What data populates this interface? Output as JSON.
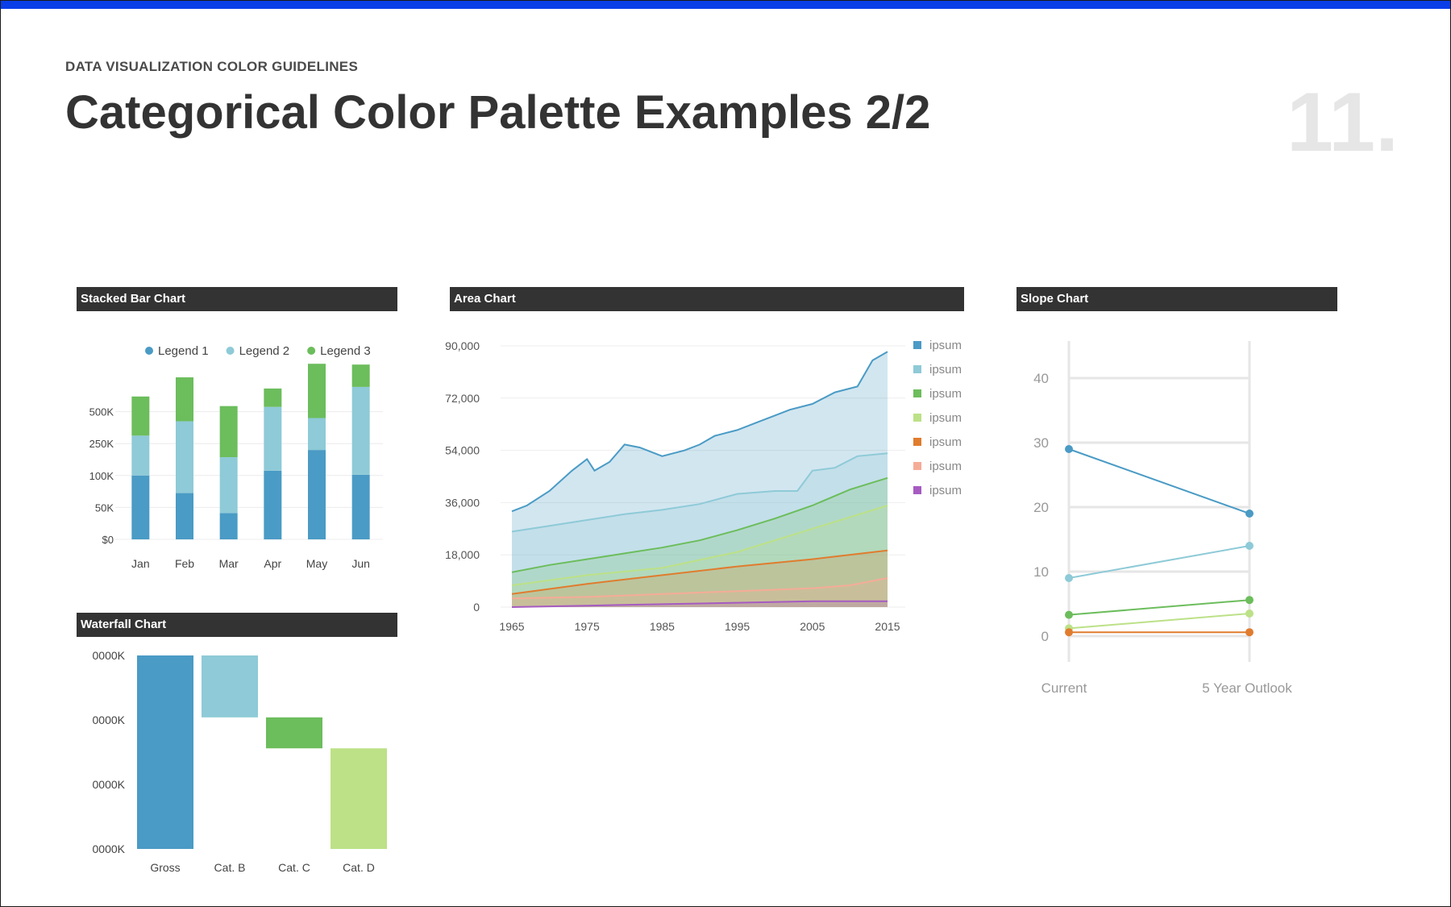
{
  "page": {
    "eyebrow": "DATA VISUALIZATION COLOR GUIDELINES",
    "title": "Categorical Color Palette Examples 2/2",
    "number": "11."
  },
  "colors": {
    "top_bar": "#0a3fe8",
    "header_bg": "#333333",
    "palette": [
      "#4a9bc5",
      "#8ecad7",
      "#6cbd5c",
      "#bce187",
      "#e07c2e",
      "#f5ac97",
      "#a65bc1"
    ]
  },
  "panels": {
    "stacked": "Stacked Bar Chart",
    "waterfall": "Waterfall Chart",
    "area": "Area Chart",
    "slope": "Slope Chart"
  },
  "chart_data": [
    {
      "type": "bar",
      "subtype": "stacked",
      "title": "Stacked Bar Chart",
      "categories": [
        "Jan",
        "Feb",
        "Mar",
        "Apr",
        "May",
        "Jun"
      ],
      "y_ticks": [
        "$0",
        "50K",
        "100K",
        "250K",
        "500K"
      ],
      "legend_position": "top",
      "series": [
        {
          "name": "Legend 1",
          "values": [
            80,
            58,
            33,
            86,
            112,
            81
          ]
        },
        {
          "name": "Legend 2",
          "values": [
            50,
            90,
            70,
            80,
            40,
            110
          ]
        },
        {
          "name": "Legend 3",
          "values": [
            49,
            55,
            64,
            23,
            68,
            28
          ]
        }
      ],
      "ylim": [
        0,
        200
      ],
      "grid": true
    },
    {
      "type": "bar",
      "subtype": "waterfall",
      "title": "Waterfall Chart",
      "categories": [
        "Gross",
        "Cat. B",
        "Cat. C",
        "Cat. D"
      ],
      "y_ticks": [
        "0000K",
        "0000K",
        "0000K",
        "0000K"
      ],
      "bars": [
        {
          "start": 0,
          "end": 100
        },
        {
          "start": 100,
          "end": 68
        },
        {
          "start": 68,
          "end": 52
        },
        {
          "start": 52,
          "end": 0
        }
      ],
      "ylim": [
        0,
        100
      ]
    },
    {
      "type": "area",
      "subtype": "stacked",
      "title": "Area Chart",
      "x_ticks": [
        "1965",
        "1975",
        "1985",
        "1995",
        "2005",
        "2015"
      ],
      "y_ticks": [
        "0",
        "18,000",
        "36,000",
        "54,000",
        "72,000",
        "90,000"
      ],
      "xlim": [
        1965,
        2015
      ],
      "ylim": [
        0,
        90000
      ],
      "legend_position": "right",
      "series": [
        {
          "name": "ipsum",
          "x": [
            1965,
            1967,
            1970,
            1973,
            1975,
            1976,
            1978,
            1980,
            1982,
            1985,
            1988,
            1990,
            1992,
            1995,
            1998,
            2000,
            2002,
            2005,
            2008,
            2011,
            2013,
            2015
          ],
          "y": [
            33000,
            35000,
            40000,
            47000,
            51000,
            47000,
            50000,
            56000,
            55000,
            52000,
            54000,
            56000,
            59000,
            61000,
            64000,
            66000,
            68000,
            70000,
            74000,
            76000,
            85000,
            88000
          ]
        },
        {
          "name": "ipsum",
          "x": [
            1965,
            1970,
            1975,
            1980,
            1985,
            1990,
            1995,
            2000,
            2003,
            2005,
            2008,
            2011,
            2015
          ],
          "y": [
            26000,
            28000,
            30000,
            32000,
            33500,
            35500,
            39000,
            40000,
            40000,
            47000,
            48000,
            52000,
            53000
          ]
        },
        {
          "name": "ipsum",
          "x": [
            1965,
            1970,
            1975,
            1980,
            1985,
            1990,
            1995,
            2000,
            2005,
            2010,
            2015
          ],
          "y": [
            12000,
            14500,
            16500,
            18500,
            20500,
            23000,
            26500,
            30500,
            35000,
            40500,
            44500
          ]
        },
        {
          "name": "ipsum",
          "x": [
            1965,
            1975,
            1985,
            1995,
            2005,
            2015
          ],
          "y": [
            7500,
            11000,
            13500,
            19000,
            27000,
            35000
          ]
        },
        {
          "name": "ipsum",
          "x": [
            1965,
            1975,
            1985,
            1995,
            2005,
            2015
          ],
          "y": [
            4500,
            8000,
            11000,
            14000,
            16500,
            19500
          ]
        },
        {
          "name": "ipsum",
          "x": [
            1965,
            1975,
            1985,
            1995,
            2005,
            2010,
            2015
          ],
          "y": [
            3000,
            3500,
            4500,
            5500,
            6500,
            7500,
            10000
          ]
        },
        {
          "name": "ipsum",
          "x": [
            1965,
            1975,
            1985,
            1995,
            2005,
            2015
          ],
          "y": [
            0,
            500,
            1000,
            1500,
            2000,
            2000
          ]
        }
      ],
      "grid": true
    },
    {
      "type": "line",
      "subtype": "slope",
      "title": "Slope Chart",
      "categories": [
        "Current",
        "5 Year Outlook"
      ],
      "y_ticks": [
        "0",
        "10",
        "20",
        "30",
        "40"
      ],
      "ylim": [
        0,
        40
      ],
      "series": [
        {
          "values": [
            29,
            19
          ]
        },
        {
          "values": [
            9,
            14
          ]
        },
        {
          "values": [
            3.3,
            5.6
          ]
        },
        {
          "values": [
            1.2,
            3.5
          ]
        },
        {
          "values": [
            0.6,
            0.6
          ]
        }
      ],
      "grid": true
    }
  ]
}
